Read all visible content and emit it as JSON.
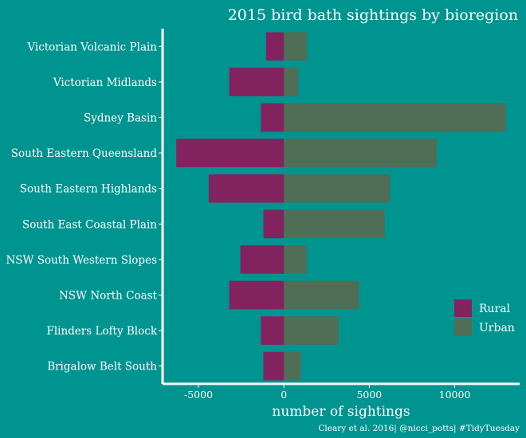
{
  "chart_data": {
    "type": "bar",
    "orientation": "horizontal",
    "stacking": "diverging",
    "title": "2015 bird bath sightings by bioregion",
    "xlabel": "number of sightings",
    "ylabel": "",
    "caption": "Cleary et al. 2016| @nicci_potts| #TidyTuesday",
    "categories": [
      "Victorian Volcanic Plain",
      "Victorian Midlands",
      "Sydney Basin",
      "South Eastern Queensland",
      "South Eastern Highlands",
      "South East Coastal Plain",
      "NSW South Western Slopes",
      "NSW North Coast",
      "Flinders Lofty Block",
      "Brigalow Belt South"
    ],
    "series": [
      {
        "name": "Rural",
        "color": "#82235f",
        "values": [
          -1050,
          -3200,
          -1350,
          -6300,
          -4400,
          -1200,
          -2550,
          -3200,
          -1350,
          -1200
        ]
      },
      {
        "name": "Urban",
        "color": "#506d56",
        "values": [
          1350,
          850,
          13000,
          8950,
          6200,
          5900,
          1350,
          4400,
          3200,
          1000
        ]
      }
    ],
    "xlim": [
      -7100,
      13800
    ],
    "xticks": [
      -5000,
      0,
      5000,
      10000
    ],
    "xtick_labels": [
      "-5000",
      "0",
      "5000",
      "10000"
    ],
    "grid": false,
    "legend_position": "right",
    "background_color": "#009490",
    "axis_color": "#ffffff"
  }
}
